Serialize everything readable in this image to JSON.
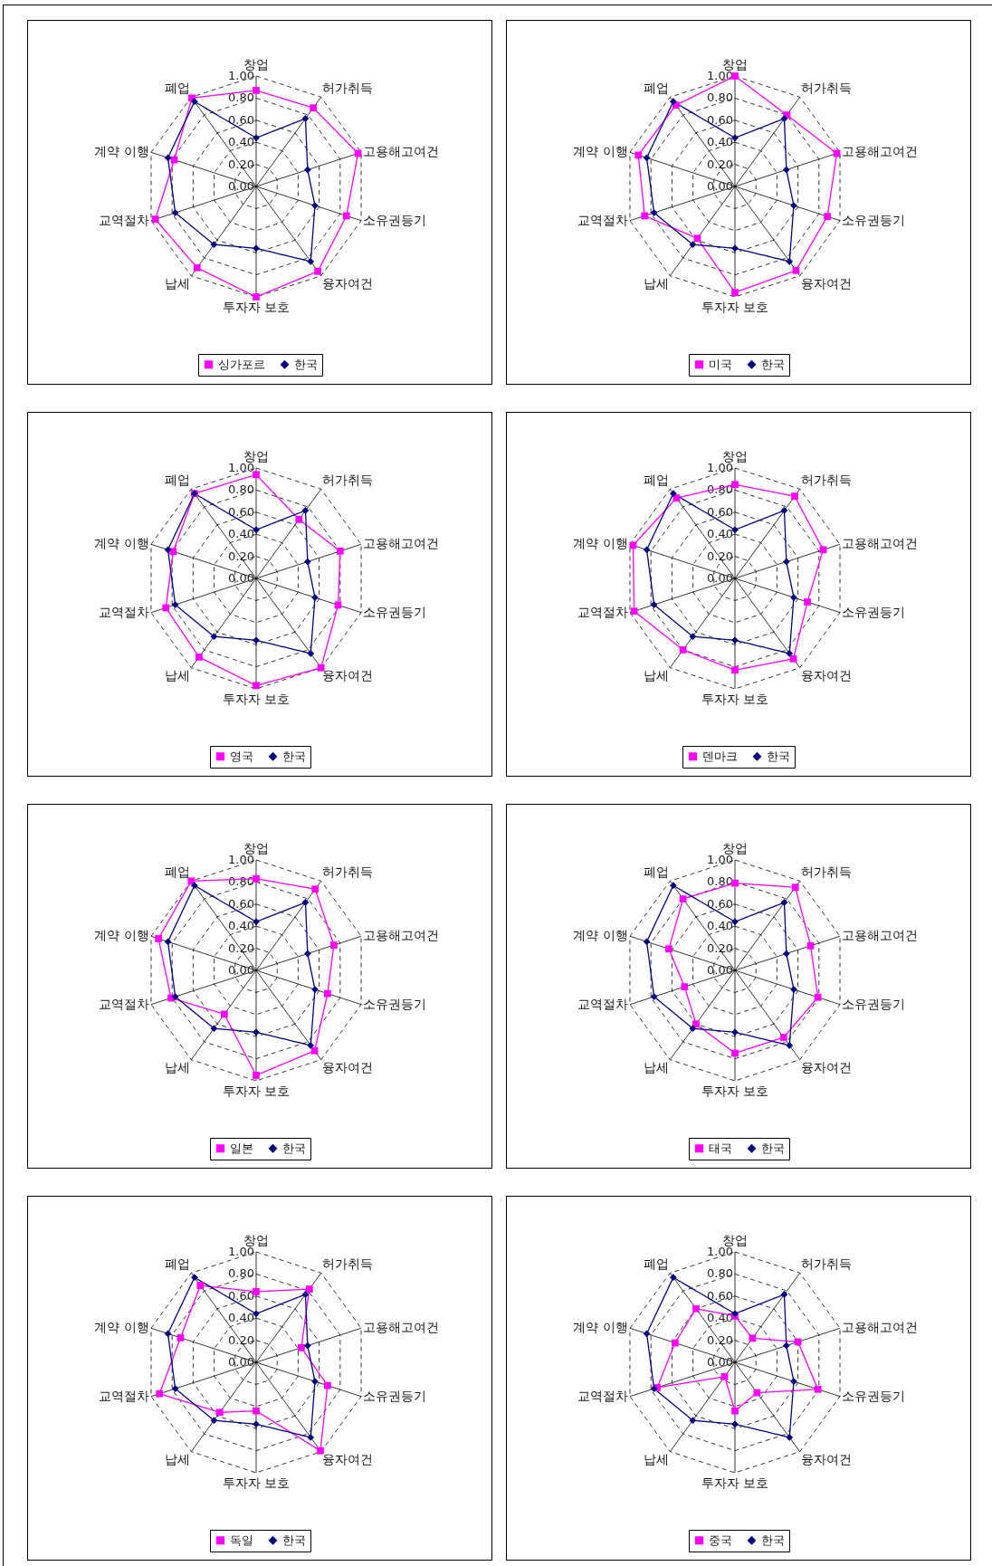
{
  "chart_data": [
    {
      "type": "radar",
      "categories": [
        "창업",
        "허가취득",
        "고용해고여건",
        "소유권등기",
        "융자여건",
        "투자자 보호",
        "납세",
        "교역절차",
        "계약 이행",
        "폐업"
      ],
      "ylim": [
        0,
        1
      ],
      "yticks": [
        {
          "value": 0,
          "label": "0.00"
        },
        {
          "value": 0.2,
          "label": "0.20"
        },
        {
          "value": 0.4,
          "label": "0.40"
        },
        {
          "value": 0.6,
          "label": "0.60"
        },
        {
          "value": 0.8,
          "label": "0.80"
        },
        {
          "value": 1,
          "label": "1.00"
        }
      ],
      "grid": true,
      "legend": "bottom",
      "series": [
        {
          "name": "싱가포르",
          "color": "#ff00ff",
          "marker": "square",
          "values": [
            0.87,
            0.88,
            0.97,
            0.86,
            0.95,
            1.0,
            0.91,
            0.96,
            0.78,
            0.99
          ]
        },
        {
          "name": "한국",
          "color": "#000080",
          "marker": "diamond",
          "values": [
            0.44,
            0.76,
            0.49,
            0.56,
            0.84,
            0.56,
            0.65,
            0.77,
            0.84,
            0.95
          ]
        }
      ]
    },
    {
      "type": "radar",
      "categories": [
        "창업",
        "허가취득",
        "고용해고여건",
        "소유권등기",
        "융자여건",
        "투자자 보호",
        "납세",
        "교역절차",
        "계약 이행",
        "폐업"
      ],
      "ylim": [
        0,
        1
      ],
      "yticks": [
        {
          "value": 0,
          "label": "0.00"
        },
        {
          "value": 0.2,
          "label": "0.20"
        },
        {
          "value": 0.4,
          "label": "0.40"
        },
        {
          "value": 0.6,
          "label": "0.60"
        },
        {
          "value": 0.8,
          "label": "0.80"
        },
        {
          "value": 1,
          "label": "1.00"
        }
      ],
      "grid": true,
      "legend": "bottom",
      "series": [
        {
          "name": "미국",
          "color": "#ff00ff",
          "marker": "square",
          "values": [
            1.0,
            0.8,
            0.97,
            0.88,
            0.94,
            0.96,
            0.58,
            0.86,
            0.92,
            0.91
          ]
        },
        {
          "name": "한국",
          "color": "#000080",
          "marker": "diamond",
          "values": [
            0.44,
            0.76,
            0.49,
            0.56,
            0.84,
            0.56,
            0.65,
            0.77,
            0.84,
            0.95
          ]
        }
      ]
    },
    {
      "type": "radar",
      "categories": [
        "창업",
        "허가취득",
        "고용해고여건",
        "소유권등기",
        "융자여건",
        "투자자 보호",
        "납세",
        "교역절차",
        "계약 이행",
        "폐업"
      ],
      "ylim": [
        0,
        1
      ],
      "yticks": [
        {
          "value": 0,
          "label": "0.00"
        },
        {
          "value": 0.2,
          "label": "0.20"
        },
        {
          "value": 0.4,
          "label": "0.40"
        },
        {
          "value": 0.6,
          "label": "0.60"
        },
        {
          "value": 0.8,
          "label": "0.80"
        },
        {
          "value": 1,
          "label": "1.00"
        }
      ],
      "grid": true,
      "legend": "bottom",
      "series": [
        {
          "name": "영국",
          "color": "#ff00ff",
          "marker": "square",
          "values": [
            0.94,
            0.66,
            0.8,
            0.78,
            1.0,
            0.97,
            0.88,
            0.86,
            0.79,
            0.95
          ]
        },
        {
          "name": "한국",
          "color": "#000080",
          "marker": "diamond",
          "values": [
            0.44,
            0.76,
            0.49,
            0.56,
            0.84,
            0.56,
            0.65,
            0.77,
            0.84,
            0.95
          ]
        }
      ]
    },
    {
      "type": "radar",
      "categories": [
        "창업",
        "허가취득",
        "고용해고여건",
        "소유권등기",
        "융자여건",
        "투자자 보호",
        "납세",
        "교역절차",
        "계약 이행",
        "폐업"
      ],
      "ylim": [
        0,
        1
      ],
      "yticks": [
        {
          "value": 0,
          "label": "0.00"
        },
        {
          "value": 0.2,
          "label": "0.20"
        },
        {
          "value": 0.4,
          "label": "0.40"
        },
        {
          "value": 0.6,
          "label": "0.60"
        },
        {
          "value": 0.8,
          "label": "0.80"
        },
        {
          "value": 1,
          "label": "1.00"
        }
      ],
      "grid": true,
      "legend": "bottom",
      "series": [
        {
          "name": "덴마크",
          "color": "#ff00ff",
          "marker": "square",
          "values": [
            0.85,
            0.92,
            0.84,
            0.69,
            0.9,
            0.83,
            0.8,
            0.96,
            0.97,
            0.9
          ]
        },
        {
          "name": "한국",
          "color": "#000080",
          "marker": "diamond",
          "values": [
            0.44,
            0.76,
            0.49,
            0.56,
            0.84,
            0.56,
            0.65,
            0.77,
            0.84,
            0.95
          ]
        }
      ]
    },
    {
      "type": "radar",
      "categories": [
        "창업",
        "허가취득",
        "고용해고여건",
        "소유권등기",
        "융자여건",
        "투자자 보호",
        "납세",
        "교역절차",
        "계약 이행",
        "폐업"
      ],
      "ylim": [
        0,
        1
      ],
      "yticks": [
        {
          "value": 0,
          "label": "0.00"
        },
        {
          "value": 0.2,
          "label": "0.20"
        },
        {
          "value": 0.4,
          "label": "0.40"
        },
        {
          "value": 0.6,
          "label": "0.60"
        },
        {
          "value": 0.8,
          "label": "0.80"
        },
        {
          "value": 1,
          "label": "1.00"
        }
      ],
      "grid": true,
      "legend": "bottom",
      "series": [
        {
          "name": "일본",
          "color": "#ff00ff",
          "marker": "square",
          "values": [
            0.83,
            0.91,
            0.74,
            0.68,
            0.9,
            0.95,
            0.49,
            0.81,
            0.93,
            1.0
          ]
        },
        {
          "name": "한국",
          "color": "#000080",
          "marker": "diamond",
          "values": [
            0.44,
            0.76,
            0.49,
            0.56,
            0.84,
            0.56,
            0.65,
            0.77,
            0.84,
            0.95
          ]
        }
      ]
    },
    {
      "type": "radar",
      "categories": [
        "창업",
        "허가취득",
        "고용해고여건",
        "소유권등기",
        "융자여건",
        "투자자 보호",
        "납세",
        "교역절차",
        "계약 이행",
        "폐업"
      ],
      "ylim": [
        0,
        1
      ],
      "yticks": [
        {
          "value": 0,
          "label": "0.00"
        },
        {
          "value": 0.2,
          "label": "0.20"
        },
        {
          "value": 0.4,
          "label": "0.40"
        },
        {
          "value": 0.6,
          "label": "0.60"
        },
        {
          "value": 0.8,
          "label": "0.80"
        },
        {
          "value": 1,
          "label": "1.00"
        }
      ],
      "grid": true,
      "legend": "bottom",
      "series": [
        {
          "name": "태국",
          "color": "#ff00ff",
          "marker": "square",
          "values": [
            0.79,
            0.93,
            0.72,
            0.79,
            0.75,
            0.75,
            0.6,
            0.48,
            0.63,
            0.8
          ]
        },
        {
          "name": "한국",
          "color": "#000080",
          "marker": "diamond",
          "values": [
            0.44,
            0.76,
            0.49,
            0.56,
            0.84,
            0.56,
            0.65,
            0.77,
            0.84,
            0.95
          ]
        }
      ]
    },
    {
      "type": "radar",
      "categories": [
        "창업",
        "허가취득",
        "고용해고여건",
        "소유권등기",
        "융자여건",
        "투자자 보호",
        "납세",
        "교역절차",
        "계약 이행",
        "폐업"
      ],
      "ylim": [
        0,
        1
      ],
      "yticks": [
        {
          "value": 0,
          "label": "0.00"
        },
        {
          "value": 0.2,
          "label": "0.20"
        },
        {
          "value": 0.4,
          "label": "0.40"
        },
        {
          "value": 0.6,
          "label": "0.60"
        },
        {
          "value": 0.8,
          "label": "0.80"
        },
        {
          "value": 1,
          "label": "1.00"
        }
      ],
      "grid": true,
      "legend": "bottom",
      "series": [
        {
          "name": "독일",
          "color": "#ff00ff",
          "marker": "square",
          "values": [
            0.64,
            0.82,
            0.43,
            0.68,
            0.99,
            0.44,
            0.56,
            0.92,
            0.72,
            0.86
          ]
        },
        {
          "name": "한국",
          "color": "#000080",
          "marker": "diamond",
          "values": [
            0.44,
            0.76,
            0.49,
            0.56,
            0.84,
            0.56,
            0.65,
            0.77,
            0.84,
            0.95
          ]
        }
      ]
    },
    {
      "type": "radar",
      "categories": [
        "창업",
        "허가취득",
        "고용해고여건",
        "소유권등기",
        "융자여건",
        "투자자 보호",
        "납세",
        "교역절차",
        "계약 이행",
        "폐업"
      ],
      "ylim": [
        0,
        1
      ],
      "yticks": [
        {
          "value": 0,
          "label": "0.00"
        },
        {
          "value": 0.2,
          "label": "0.20"
        },
        {
          "value": 0.4,
          "label": "0.40"
        },
        {
          "value": 0.6,
          "label": "0.60"
        },
        {
          "value": 0.8,
          "label": "0.80"
        },
        {
          "value": 1,
          "label": "1.00"
        }
      ],
      "grid": true,
      "legend": "bottom",
      "series": [
        {
          "name": "중국",
          "color": "#ff00ff",
          "marker": "square",
          "values": [
            0.42,
            0.27,
            0.6,
            0.79,
            0.34,
            0.44,
            0.16,
            0.74,
            0.57,
            0.6
          ]
        },
        {
          "name": "한국",
          "color": "#000080",
          "marker": "diamond",
          "values": [
            0.44,
            0.76,
            0.49,
            0.56,
            0.84,
            0.56,
            0.65,
            0.77,
            0.84,
            0.95
          ]
        }
      ]
    }
  ]
}
